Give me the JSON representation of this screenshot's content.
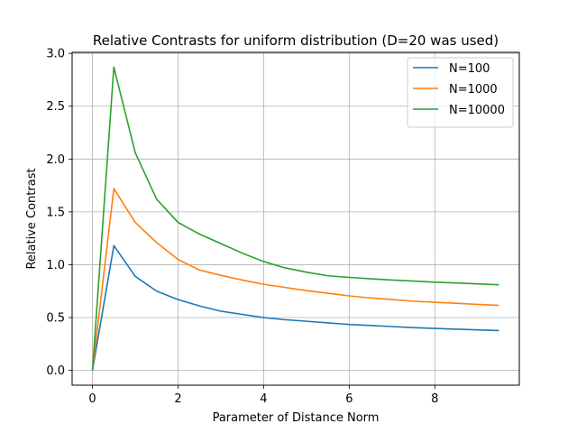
{
  "chart_data": {
    "type": "line",
    "title": "Relative Contrasts for uniform distribution (D=20 was used)",
    "xlabel": "Parameter of Distance Norm",
    "ylabel": "Relative Contrast",
    "xlim": [
      -0.475,
      9.975
    ],
    "ylim": [
      -0.14,
      3.01
    ],
    "xticks": [
      0,
      2,
      4,
      6,
      8
    ],
    "yticks": [
      0.0,
      0.5,
      1.0,
      1.5,
      2.0,
      2.5,
      3.0
    ],
    "xtick_labels": [
      "0",
      "2",
      "4",
      "6",
      "8"
    ],
    "ytick_labels": [
      "0.0",
      "0.5",
      "1.0",
      "1.5",
      "2.0",
      "2.5",
      "3.0"
    ],
    "grid": true,
    "legend_position": "top-right",
    "x": [
      0,
      0.5,
      1,
      1.5,
      2,
      2.5,
      3,
      3.5,
      4,
      4.5,
      5,
      5.5,
      6,
      6.5,
      7,
      7.5,
      8,
      8.5,
      9,
      9.5
    ],
    "series": [
      {
        "name": "N=100",
        "color": "#1f77b4",
        "values": [
          0.0,
          1.18,
          0.89,
          0.75,
          0.67,
          0.61,
          0.56,
          0.53,
          0.5,
          0.48,
          0.465,
          0.45,
          0.435,
          0.425,
          0.415,
          0.405,
          0.397,
          0.39,
          0.383,
          0.377
        ]
      },
      {
        "name": "N=1000",
        "color": "#ff7f0e",
        "values": [
          0.0,
          1.72,
          1.4,
          1.21,
          1.05,
          0.95,
          0.9,
          0.855,
          0.815,
          0.785,
          0.755,
          0.73,
          0.705,
          0.685,
          0.67,
          0.655,
          0.645,
          0.635,
          0.625,
          0.615
        ]
      },
      {
        "name": "N=10000",
        "color": "#2ca02c",
        "values": [
          0.0,
          2.87,
          2.06,
          1.62,
          1.4,
          1.29,
          1.2,
          1.11,
          1.03,
          0.97,
          0.93,
          0.895,
          0.88,
          0.867,
          0.855,
          0.845,
          0.835,
          0.827,
          0.819,
          0.81
        ]
      }
    ]
  }
}
